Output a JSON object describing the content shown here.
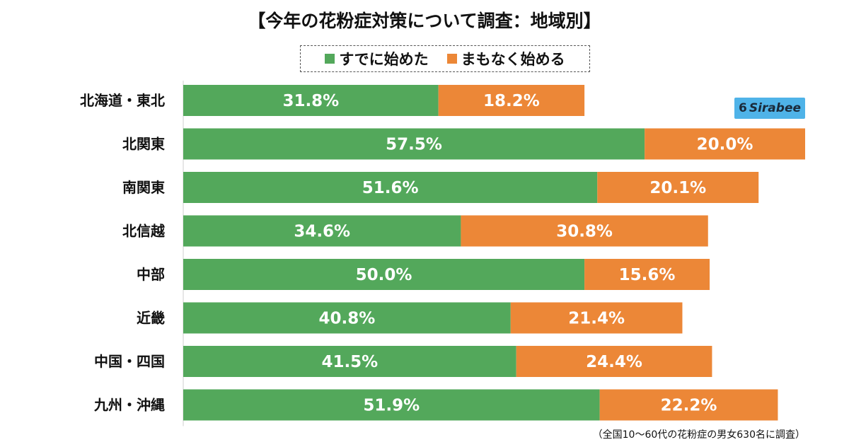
{
  "title": "【今年の花粉症対策について調査：地域別】",
  "legend": [
    {
      "label": "すでに始めた",
      "color": "#53a85b"
    },
    {
      "label": "まもなく始める",
      "color": "#ec8737"
    }
  ],
  "logo": {
    "text": "Sirabee",
    "mark": "6"
  },
  "footnote": "（全国10〜60代の花粉症の男女630名に調査）",
  "chart_data": {
    "type": "bar",
    "orientation": "horizontal",
    "stacked": true,
    "title": "【今年の花粉症対策について調査：地域別】",
    "categories": [
      "北海道・東北",
      "北関東",
      "南関東",
      "北信越",
      "中部",
      "近畿",
      "中国・四国",
      "九州・沖縄"
    ],
    "series": [
      {
        "name": "すでに始めた",
        "color": "#53a85b",
        "values": [
          31.8,
          57.5,
          51.6,
          34.6,
          50.0,
          40.8,
          41.5,
          51.9
        ]
      },
      {
        "name": "まもなく始める",
        "color": "#ec8737",
        "values": [
          18.2,
          20.0,
          20.1,
          30.8,
          15.6,
          21.4,
          24.4,
          22.2
        ]
      }
    ],
    "value_suffix": "%",
    "xlim": [
      0,
      77.5
    ],
    "xlabel": "",
    "ylabel": "",
    "grid": false,
    "legend_position": "top-center"
  }
}
